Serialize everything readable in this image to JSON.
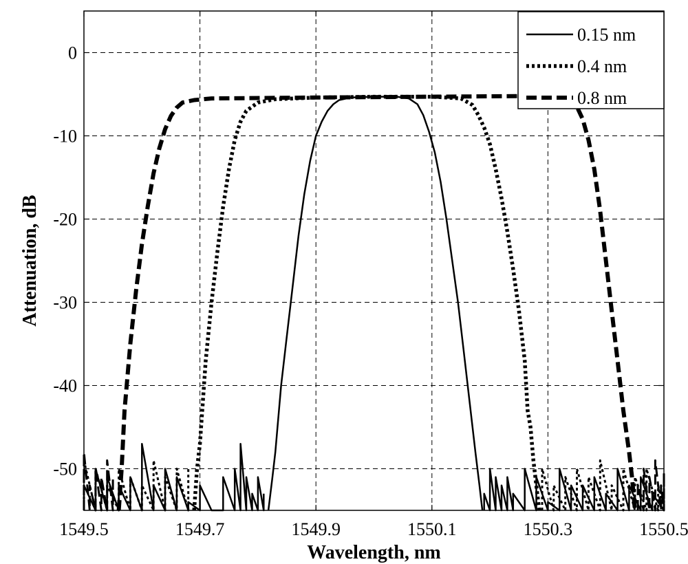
{
  "chart_data": {
    "type": "line",
    "title": "",
    "xlabel": "Wavelength, nm",
    "ylabel": "Attenuation, dB",
    "xlim": [
      1549.5,
      1550.5
    ],
    "ylim": [
      -55,
      5
    ],
    "x_ticks": [
      1549.5,
      1549.7,
      1549.9,
      1550.1,
      1550.3,
      1550.5
    ],
    "x_tick_labels": [
      "1549.5",
      "1549.7",
      "1549.9",
      "1550.1",
      "1550.3",
      "1550.5"
    ],
    "y_ticks": [
      0,
      -10,
      -20,
      -30,
      -40,
      -50
    ],
    "y_tick_labels": [
      "0",
      "-10",
      "-20",
      "-30",
      "-40",
      "-50"
    ],
    "grid": true,
    "legend_position": "top-right",
    "series": [
      {
        "name": "0.15 nm",
        "line_style": "solid",
        "points": [
          [
            1549.818,
            -55
          ],
          [
            1549.825,
            -51
          ],
          [
            1549.83,
            -48
          ],
          [
            1549.835,
            -44
          ],
          [
            1549.84,
            -40
          ],
          [
            1549.85,
            -34
          ],
          [
            1549.86,
            -28
          ],
          [
            1549.87,
            -22
          ],
          [
            1549.88,
            -17
          ],
          [
            1549.89,
            -13
          ],
          [
            1549.9,
            -10
          ],
          [
            1549.91,
            -8.3
          ],
          [
            1549.92,
            -7
          ],
          [
            1549.93,
            -6.2
          ],
          [
            1549.94,
            -5.7
          ],
          [
            1549.96,
            -5.4
          ],
          [
            1550.0,
            -5.3
          ],
          [
            1550.04,
            -5.3
          ],
          [
            1550.06,
            -5.5
          ],
          [
            1550.075,
            -6.2
          ],
          [
            1550.085,
            -7.5
          ],
          [
            1550.095,
            -9.5
          ],
          [
            1550.105,
            -12
          ],
          [
            1550.115,
            -15.5
          ],
          [
            1550.125,
            -20
          ],
          [
            1550.135,
            -25
          ],
          [
            1550.145,
            -30
          ],
          [
            1550.155,
            -36
          ],
          [
            1550.165,
            -42
          ],
          [
            1550.175,
            -48
          ],
          [
            1550.182,
            -52
          ],
          [
            1550.187,
            -55
          ]
        ],
        "noise_left": [
          [
            1549.5,
            -52
          ],
          [
            1549.52,
            -50
          ],
          [
            1549.54,
            -51
          ],
          [
            1549.56,
            -52
          ],
          [
            1549.58,
            -51
          ],
          [
            1549.6,
            -47
          ],
          [
            1549.62,
            -52
          ],
          [
            1549.64,
            -50
          ],
          [
            1549.66,
            -51
          ],
          [
            1549.68,
            -54
          ],
          [
            1549.7,
            -52
          ],
          [
            1549.72,
            -55
          ],
          [
            1549.74,
            -51
          ],
          [
            1549.76,
            -50
          ],
          [
            1549.77,
            -47
          ],
          [
            1549.78,
            -51
          ],
          [
            1549.79,
            -53
          ],
          [
            1549.8,
            -51
          ],
          [
            1549.81,
            -53
          ]
        ],
        "noise_right": [
          [
            1550.19,
            -53
          ],
          [
            1550.2,
            -50
          ],
          [
            1550.21,
            -51
          ],
          [
            1550.22,
            -52
          ],
          [
            1550.23,
            -51
          ],
          [
            1550.24,
            -53
          ],
          [
            1550.26,
            -50
          ],
          [
            1550.28,
            -51
          ],
          [
            1550.3,
            -54
          ],
          [
            1550.32,
            -50
          ],
          [
            1550.34,
            -52
          ],
          [
            1550.36,
            -52
          ],
          [
            1550.38,
            -51
          ],
          [
            1550.4,
            -53
          ],
          [
            1550.42,
            -50
          ],
          [
            1550.44,
            -52
          ],
          [
            1550.46,
            -51
          ],
          [
            1550.48,
            -53
          ],
          [
            1550.5,
            -51
          ]
        ]
      },
      {
        "name": "0.4 nm",
        "line_style": "dotted",
        "points": [
          [
            1549.69,
            -55
          ],
          [
            1549.695,
            -50
          ],
          [
            1549.7,
            -47
          ],
          [
            1549.705,
            -42
          ],
          [
            1549.71,
            -37
          ],
          [
            1549.72,
            -30
          ],
          [
            1549.73,
            -24
          ],
          [
            1549.74,
            -18.5
          ],
          [
            1549.75,
            -14
          ],
          [
            1549.76,
            -10.5
          ],
          [
            1549.77,
            -8.3
          ],
          [
            1549.78,
            -7
          ],
          [
            1549.8,
            -6
          ],
          [
            1549.83,
            -5.6
          ],
          [
            1549.9,
            -5.4
          ],
          [
            1550.0,
            -5.3
          ],
          [
            1550.1,
            -5.3
          ],
          [
            1550.15,
            -5.5
          ],
          [
            1550.17,
            -6.3
          ],
          [
            1550.18,
            -7.5
          ],
          [
            1550.19,
            -9
          ],
          [
            1550.2,
            -11
          ],
          [
            1550.21,
            -14
          ],
          [
            1550.22,
            -17.5
          ],
          [
            1550.23,
            -21.5
          ],
          [
            1550.24,
            -26
          ],
          [
            1550.25,
            -31
          ],
          [
            1550.26,
            -37
          ],
          [
            1550.265,
            -43
          ],
          [
            1550.27,
            -45
          ],
          [
            1550.275,
            -49
          ],
          [
            1550.28,
            -52
          ],
          [
            1550.285,
            -55
          ]
        ],
        "noise_left": [
          [
            1549.5,
            -49
          ],
          [
            1549.52,
            -50
          ],
          [
            1549.54,
            -52
          ],
          [
            1549.56,
            -50
          ],
          [
            1549.58,
            -51
          ],
          [
            1549.6,
            -52
          ],
          [
            1549.62,
            -49
          ],
          [
            1549.64,
            -51
          ],
          [
            1549.66,
            -50
          ],
          [
            1549.68,
            -50
          ]
        ],
        "noise_right": [
          [
            1550.29,
            -50
          ],
          [
            1550.31,
            -52
          ],
          [
            1550.33,
            -51
          ],
          [
            1550.35,
            -50
          ],
          [
            1550.37,
            -51
          ],
          [
            1550.39,
            -49
          ],
          [
            1550.41,
            -52
          ],
          [
            1550.43,
            -50
          ],
          [
            1550.45,
            -51
          ],
          [
            1550.47,
            -50
          ],
          [
            1550.49,
            -52
          ],
          [
            1550.5,
            -51
          ]
        ]
      },
      {
        "name": "0.8 nm",
        "line_style": "dashed",
        "points": [
          [
            1549.56,
            -55
          ],
          [
            1549.565,
            -50
          ],
          [
            1549.57,
            -43
          ],
          [
            1549.58,
            -35
          ],
          [
            1549.59,
            -28.5
          ],
          [
            1549.6,
            -23
          ],
          [
            1549.61,
            -18.5
          ],
          [
            1549.62,
            -14.5
          ],
          [
            1549.63,
            -11.5
          ],
          [
            1549.64,
            -9.2
          ],
          [
            1549.65,
            -7.6
          ],
          [
            1549.66,
            -6.6
          ],
          [
            1549.67,
            -6.0
          ],
          [
            1549.69,
            -5.7
          ],
          [
            1549.72,
            -5.5
          ],
          [
            1549.9,
            -5.4
          ],
          [
            1550.1,
            -5.3
          ],
          [
            1550.3,
            -5.2
          ],
          [
            1550.33,
            -5.4
          ],
          [
            1550.35,
            -6.5
          ],
          [
            1550.36,
            -8
          ],
          [
            1550.37,
            -10.5
          ],
          [
            1550.38,
            -14
          ],
          [
            1550.39,
            -19
          ],
          [
            1550.4,
            -25
          ],
          [
            1550.41,
            -31
          ],
          [
            1550.42,
            -37
          ],
          [
            1550.43,
            -43
          ],
          [
            1550.44,
            -48
          ],
          [
            1550.445,
            -51
          ],
          [
            1550.45,
            -55
          ]
        ],
        "noise_left": [
          [
            1549.5,
            -48
          ],
          [
            1549.51,
            -52
          ],
          [
            1549.52,
            -50
          ],
          [
            1549.53,
            -51
          ],
          [
            1549.54,
            -49
          ],
          [
            1549.55,
            -51
          ]
        ],
        "noise_right": [
          [
            1550.455,
            -52
          ],
          [
            1550.465,
            -50
          ],
          [
            1550.475,
            -51
          ],
          [
            1550.485,
            -49
          ],
          [
            1550.495,
            -52
          ],
          [
            1550.5,
            -50
          ]
        ]
      }
    ]
  }
}
